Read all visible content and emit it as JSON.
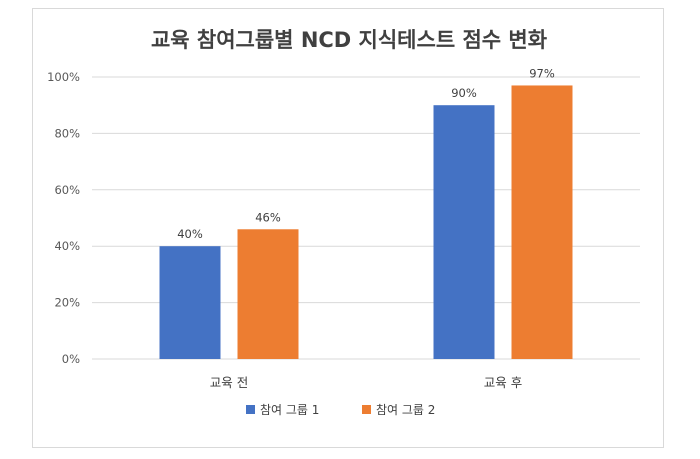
{
  "chart_data": {
    "type": "bar",
    "title": "교육  참여그룹별 NCD 지식테스트 점수 변화",
    "xlabel": "",
    "ylabel": "",
    "categories": [
      "교육 전",
      "교육 후"
    ],
    "series": [
      {
        "name": "참여 그룹 1",
        "values": [
          40,
          90
        ],
        "labels": [
          "40%",
          "90%"
        ],
        "color": "#4472C4"
      },
      {
        "name": "참여 그룹 2",
        "values": [
          46,
          97
        ],
        "labels": [
          "46%",
          "97%"
        ],
        "color": "#ED7D31"
      }
    ],
    "ylim": [
      0,
      100
    ],
    "yticks": [
      0,
      20,
      40,
      60,
      80,
      100
    ],
    "ytick_labels": [
      "0%",
      "20%",
      "40%",
      "60%",
      "80%",
      "100%"
    ],
    "grid": true,
    "legend_position": "bottom"
  }
}
